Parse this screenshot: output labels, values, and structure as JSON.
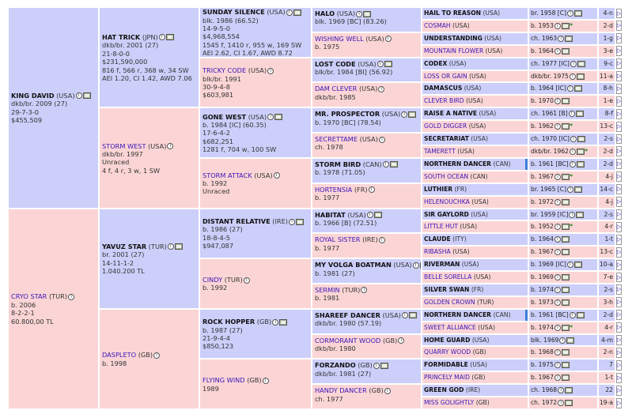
{
  "root": [
    {
      "name": "KING DAVID",
      "country": "(USA)",
      "sex": "m",
      "lines": [
        "dkb/br. 2009 (27)",
        "29-7-3-0",
        "$455,509"
      ]
    },
    {
      "name": "CRYO STAR",
      "country": "(TUR)",
      "sex": "f",
      "lines": [
        "b. 2006",
        "8-2-2-1",
        "60.800,00 TL"
      ]
    }
  ],
  "gen2": [
    {
      "name": "HAT TRICK",
      "country": "(JPN)",
      "sex": "m",
      "lines": [
        "dkb/br. 2001 (27)",
        "21-8-0-0",
        "$231,590,000",
        "816 f, 566 r, 368 w, 34 SW",
        "AEI 1.20, CI 1.42, AWD 7.06"
      ]
    },
    {
      "name": "STORM WEST",
      "country": "(USA)",
      "sex": "f",
      "lines": [
        "dkb/br. 1997",
        "Unraced",
        "4 f, 4 r, 3 w, 1 SW"
      ]
    },
    {
      "name": "YAVUZ STAR",
      "country": "(TUR)",
      "sex": "m",
      "lines": [
        "br. 2001 (27)",
        "14-11-1-2",
        "1.040.200 TL"
      ]
    },
    {
      "name": "DASPLETO",
      "country": "(GB)",
      "sex": "f",
      "lines": [
        "b. 1998"
      ]
    }
  ],
  "gen3": [
    {
      "name": "SUNDAY SILENCE",
      "country": "(USA)",
      "sex": "m",
      "lines": [
        "blk. 1986 (66.52)",
        "14-9-5-0",
        "$4,968,554",
        "1545 f, 1410 r, 955 w, 169 SW",
        "AEI 2.62, CI 1.67, AWD 8.72"
      ]
    },
    {
      "name": "TRICKY CODE",
      "country": "(USA)",
      "sex": "f",
      "lines": [
        "blk/br. 1991",
        "30-9-4-8",
        "$603,981"
      ]
    },
    {
      "name": "GONE WEST",
      "country": "(USA)",
      "sex": "m",
      "lines": [
        "b. 1984 [IC] (60.35)",
        "17-6-4-2",
        "$682,251",
        "1281 f, 704 w, 100 SW"
      ]
    },
    {
      "name": "STORM ATTACK",
      "country": "(USA)",
      "sex": "f",
      "lines": [
        "b. 1992",
        "Unraced"
      ]
    },
    {
      "name": "DISTANT RELATIVE",
      "country": "(IRE)",
      "sex": "m",
      "lines": [
        "b. 1986 (27)",
        "18-8-4-5",
        "$947,087"
      ]
    },
    {
      "name": "CINDY",
      "country": "(TUR)",
      "sex": "f",
      "lines": [
        "b. 1992"
      ]
    },
    {
      "name": "ROCK HOPPER",
      "country": "(GB)",
      "sex": "m",
      "lines": [
        "b. 1987 (27)",
        "21-9-4-4",
        "$850,123"
      ]
    },
    {
      "name": "FLYING WIND",
      "country": "(GB)",
      "sex": "f",
      "lines": [
        "1989"
      ]
    }
  ],
  "gen4": [
    {
      "name": "HALO",
      "country": "(USA)",
      "sex": "m",
      "lines": [
        "blk. 1969 [BC] (83.26)"
      ]
    },
    {
      "name": "WISHING WELL",
      "country": "(USA)",
      "sex": "f",
      "lines": [
        "b. 1975"
      ]
    },
    {
      "name": "LOST CODE",
      "country": "(USA)",
      "sex": "m",
      "lines": [
        "blk/br. 1984 [BI] (56.92)"
      ]
    },
    {
      "name": "DAM CLEVER",
      "country": "(USA)",
      "sex": "f",
      "lines": [
        "dkb/br. 1985"
      ]
    },
    {
      "name": "MR. PROSPECTOR",
      "country": "(USA)",
      "sex": "m",
      "lines": [
        "b. 1970 [BC] (78.54)"
      ]
    },
    {
      "name": "SECRETTAME",
      "country": "(USA)",
      "sex": "f",
      "lines": [
        "ch. 1978"
      ]
    },
    {
      "name": "STORM BIRD",
      "country": "(CAN)",
      "sex": "m",
      "lines": [
        "b. 1978 (71.05)"
      ]
    },
    {
      "name": "HORTENSIA",
      "country": "(FR)",
      "sex": "f",
      "lines": [
        "b. 1977"
      ]
    },
    {
      "name": "HABITAT",
      "country": "(USA)",
      "sex": "m",
      "lines": [
        "b. 1966 [B] (72.51)"
      ]
    },
    {
      "name": "ROYAL SISTER",
      "country": "(IRE)",
      "sex": "f",
      "lines": [
        "b. 1977"
      ]
    },
    {
      "name": "MY VOLGA BOATMAN",
      "country": "(USA)",
      "sex": "m",
      "lines": [
        "b. 1981 (27)"
      ]
    },
    {
      "name": "SERMIN",
      "country": "(TUR)",
      "sex": "f",
      "lines": [
        "b. 1981"
      ]
    },
    {
      "name": "SHAREEF DANCER",
      "country": "(USA)",
      "sex": "m",
      "lines": [
        "dkb/br. 1980 (57.19)"
      ]
    },
    {
      "name": "CORMORANT WOOD",
      "country": "(GB)",
      "sex": "f",
      "lines": [
        "dkb/br. 1980"
      ]
    },
    {
      "name": "FORZANDO",
      "country": "(GB)",
      "sex": "m",
      "lines": [
        "dkb/br. 1981 (27)"
      ]
    },
    {
      "name": "HANDY DANCER",
      "country": "(GB)",
      "sex": "f",
      "lines": [
        "ch. 1977"
      ]
    }
  ],
  "gen5": [
    {
      "name": "HAIL TO REASON",
      "country": "(USA)",
      "sex": "m",
      "info": "br. 1958 [C]",
      "n": "4-n",
      "star": false
    },
    {
      "name": "COSMAH",
      "country": "(USA)",
      "sex": "f",
      "info": "b. 1953",
      "n": "2-d",
      "star": true
    },
    {
      "name": "UNDERSTANDING",
      "country": "(USA)",
      "sex": "m",
      "info": "ch. 1963",
      "n": "1-g",
      "star": false
    },
    {
      "name": "MOUNTAIN FLOWER",
      "country": "(USA)",
      "sex": "f",
      "info": "b. 1964",
      "n": "3-e",
      "star": false
    },
    {
      "name": "CODEX",
      "country": "(USA)",
      "sex": "m",
      "info": "ch. 1977 [IC]",
      "n": "9-c",
      "star": false
    },
    {
      "name": "LOSS OR GAIN",
      "country": "(USA)",
      "sex": "f",
      "info": "dkb/br. 1975",
      "n": "11-a",
      "star": false
    },
    {
      "name": "DAMASCUS",
      "country": "(USA)",
      "sex": "m",
      "info": "b. 1964 [IC]",
      "n": "8-h",
      "star": false
    },
    {
      "name": "CLEVER BIRD",
      "country": "(USA)",
      "sex": "f",
      "info": "b. 1970",
      "n": "1-e",
      "star": false
    },
    {
      "name": "RAISE A NATIVE",
      "country": "(USA)",
      "sex": "m",
      "info": "ch. 1961 [B]",
      "n": "8-f",
      "star": false
    },
    {
      "name": "GOLD DIGGER",
      "country": "(USA)",
      "sex": "f",
      "info": "b. 1962",
      "n": "13-c",
      "star": true
    },
    {
      "name": "SECRETARIAT",
      "country": "(USA)",
      "sex": "m",
      "info": "ch. 1970 [IC]",
      "n": "2-s",
      "star": false
    },
    {
      "name": "TAMERETT",
      "country": "(USA)",
      "sex": "f",
      "info": "dkb/br. 1962",
      "n": "2-d",
      "star": true
    },
    {
      "name": "NORTHERN DANCER",
      "country": "(CAN)",
      "sex": "m",
      "info": "b. 1961 [BC]",
      "n": "2-d",
      "star": false,
      "hl": true
    },
    {
      "name": "SOUTH OCEAN",
      "country": "(CAN)",
      "sex": "f",
      "info": "b. 1967",
      "n": "4-j",
      "star": true
    },
    {
      "name": "LUTHIER",
      "country": "(FR)",
      "sex": "m",
      "info": "br. 1965 [C]",
      "n": "14-c",
      "star": false
    },
    {
      "name": "HELENOUCHKA",
      "country": "(USA)",
      "sex": "f",
      "info": "b. 1972",
      "n": "4-j",
      "star": false
    },
    {
      "name": "SIR GAYLORD",
      "country": "(USA)",
      "sex": "m",
      "info": "br. 1959 [IC]",
      "n": "2-s",
      "star": false
    },
    {
      "name": "LITTLE HUT",
      "country": "(USA)",
      "sex": "f",
      "info": "b. 1952",
      "n": "4-r",
      "star": true
    },
    {
      "name": "CLAUDE",
      "country": "(ITY)",
      "sex": "m",
      "info": "b. 1964",
      "n": "1-t",
      "star": false
    },
    {
      "name": "RIBASHA",
      "country": "(USA)",
      "sex": "f",
      "info": "b. 1967",
      "n": "13-c",
      "star": false
    },
    {
      "name": "RIVERMAN",
      "country": "(USA)",
      "sex": "m",
      "info": "b. 1969 [IC]",
      "n": "10-a",
      "star": false
    },
    {
      "name": "BELLE SORELLA",
      "country": "(USA)",
      "sex": "f",
      "info": "b. 1969",
      "n": "7-e",
      "star": false
    },
    {
      "name": "SILVER SWAN",
      "country": "(FR)",
      "sex": "m",
      "info": "b. 1974",
      "n": "2-s",
      "star": false
    },
    {
      "name": "GOLDEN CROWN",
      "country": "(TUR)",
      "sex": "f",
      "info": "b. 1973",
      "n": "3-h",
      "star": false
    },
    {
      "name": "NORTHERN DANCER",
      "country": "(CAN)",
      "sex": "m",
      "info": "b. 1961 [BC]",
      "n": "2-d",
      "star": false,
      "hl": true
    },
    {
      "name": "SWEET ALLIANCE",
      "country": "(USA)",
      "sex": "f",
      "info": "b. 1974",
      "n": "4-r",
      "star": true
    },
    {
      "name": "HOME GUARD",
      "country": "(USA)",
      "sex": "m",
      "info": "blk. 1969",
      "n": "4-m",
      "star": false
    },
    {
      "name": "QUARRY WOOD",
      "country": "(GB)",
      "sex": "f",
      "info": "b. 1968",
      "n": "2-n",
      "star": false
    },
    {
      "name": "FORMIDABLE",
      "country": "(USA)",
      "sex": "m",
      "info": "b. 1975",
      "n": "7",
      "star": false
    },
    {
      "name": "PRINCELY MAID",
      "country": "(GB)",
      "sex": "f",
      "info": "b. 1967",
      "n": "1-t",
      "star": false
    },
    {
      "name": "GREEN GOD",
      "country": "(IRE)",
      "sex": "m",
      "info": "ch. 1968",
      "n": "22",
      "star": false
    },
    {
      "name": "MISS GOLIGHTLY",
      "country": "(GB)",
      "sex": "f",
      "info": "ch. 1972",
      "n": "19-a",
      "star": false
    }
  ],
  "icons": {
    "info": "i",
    "arrow": "▷"
  },
  "colors": {
    "male_bg": "#cccffa",
    "female_bg": "#fbd5d5",
    "female_link": "#3a14b8"
  }
}
